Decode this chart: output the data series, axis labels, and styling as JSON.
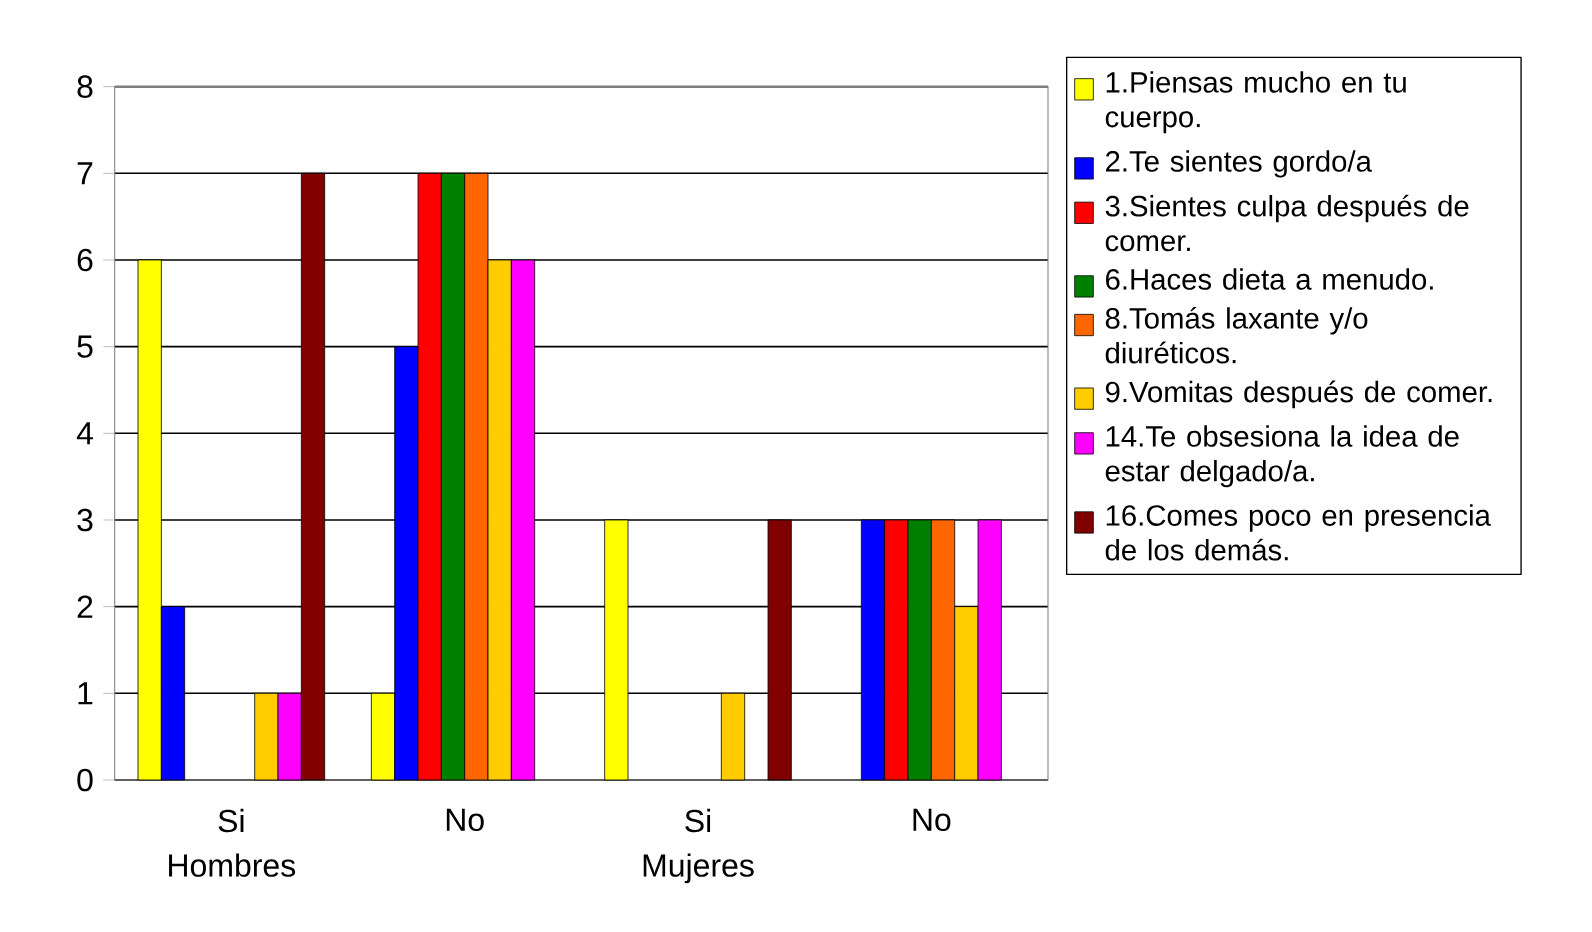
{
  "chart_data": {
    "type": "bar",
    "categories": [
      "Si",
      "No",
      "Si",
      "No"
    ],
    "annotations": [
      "Hombres",
      "Mujeres"
    ],
    "series": [
      {
        "name": "1.Piensas mucho en tu cuerpo.",
        "color": "#ffff00",
        "values": [
          6,
          1,
          3,
          0
        ]
      },
      {
        "name": "2.Te sientes gordo/a",
        "color": "#0000ff",
        "values": [
          2,
          5,
          0,
          3
        ]
      },
      {
        "name": "3.Sientes culpa después de comer.",
        "color": "#ff0000",
        "values": [
          0,
          7,
          0,
          3
        ]
      },
      {
        "name": "6.Haces dieta a menudo.",
        "color": "#008000",
        "values": [
          0,
          7,
          0,
          3
        ]
      },
      {
        "name": "8.Tomás laxante y/o diuréticos.",
        "color": "#ff6600",
        "values": [
          0,
          7,
          0,
          3
        ]
      },
      {
        "name": "9.Vomitas después de comer.",
        "color": "#ffcc00",
        "values": [
          1,
          6,
          1,
          2
        ]
      },
      {
        "name": "14.Te obsesiona la idea de estar delgado/a.",
        "color": "#ff00ff",
        "values": [
          1,
          6,
          0,
          3
        ]
      },
      {
        "name": "16.Comes poco en presencia de los demás.",
        "color": "#800000",
        "values": [
          7,
          0,
          3,
          0
        ]
      }
    ],
    "ylim": [
      0,
      8
    ],
    "yticks": [
      0,
      1,
      2,
      3,
      4,
      5,
      6,
      7,
      8
    ],
    "grid": "y",
    "legend": "right"
  }
}
